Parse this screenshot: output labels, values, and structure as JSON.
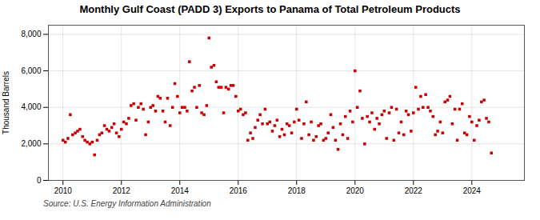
{
  "chart_data": {
    "type": "scatter",
    "title": "Monthly Gulf Coast (PADD 3) Exports to Panama of Total Petroleum Products",
    "ylabel": "Thousand Barrels",
    "source": "Source: U.S. Energy Information Administration",
    "color": "#cc0000",
    "marker": "square",
    "grid": true,
    "xlim": [
      2009.5,
      2025.8
    ],
    "ylim": [
      0,
      8500
    ],
    "xticks": [
      2010,
      2012,
      2014,
      2016,
      2018,
      2020,
      2022,
      2024
    ],
    "yticks": [
      0,
      {
        "value": 2000,
        "label": "2,000"
      },
      {
        "value": 4000,
        "label": "4,000"
      },
      {
        "value": 6000,
        "label": "6,000"
      },
      {
        "value": 8000,
        "label": "8,000"
      }
    ],
    "x": [
      2010.0,
      2010.08,
      2010.17,
      2010.25,
      2010.33,
      2010.42,
      2010.5,
      2010.58,
      2010.67,
      2010.75,
      2010.83,
      2010.92,
      2011.0,
      2011.08,
      2011.17,
      2011.25,
      2011.33,
      2011.42,
      2011.5,
      2011.58,
      2011.67,
      2011.75,
      2011.83,
      2011.92,
      2012.0,
      2012.08,
      2012.17,
      2012.25,
      2012.33,
      2012.42,
      2012.5,
      2012.58,
      2012.67,
      2012.75,
      2012.83,
      2012.92,
      2013.0,
      2013.08,
      2013.17,
      2013.25,
      2013.33,
      2013.42,
      2013.5,
      2013.58,
      2013.67,
      2013.75,
      2013.83,
      2013.92,
      2014.0,
      2014.08,
      2014.17,
      2014.25,
      2014.33,
      2014.42,
      2014.5,
      2014.58,
      2014.67,
      2014.75,
      2014.83,
      2014.92,
      2015.0,
      2015.08,
      2015.17,
      2015.25,
      2015.33,
      2015.42,
      2015.5,
      2015.58,
      2015.67,
      2015.75,
      2015.83,
      2015.92,
      2016.0,
      2016.08,
      2016.17,
      2016.25,
      2016.33,
      2016.42,
      2016.5,
      2016.58,
      2016.67,
      2016.75,
      2016.83,
      2016.92,
      2017.0,
      2017.08,
      2017.17,
      2017.25,
      2017.33,
      2017.42,
      2017.5,
      2017.58,
      2017.67,
      2017.75,
      2017.83,
      2017.92,
      2018.0,
      2018.08,
      2018.17,
      2018.25,
      2018.33,
      2018.42,
      2018.5,
      2018.58,
      2018.67,
      2018.75,
      2018.83,
      2018.92,
      2019.0,
      2019.08,
      2019.17,
      2019.25,
      2019.33,
      2019.42,
      2019.5,
      2019.58,
      2019.67,
      2019.75,
      2019.83,
      2019.92,
      2020.0,
      2020.08,
      2020.17,
      2020.25,
      2020.33,
      2020.42,
      2020.5,
      2020.58,
      2020.67,
      2020.75,
      2020.83,
      2020.92,
      2021.0,
      2021.08,
      2021.17,
      2021.25,
      2021.33,
      2021.42,
      2021.5,
      2021.58,
      2021.67,
      2021.75,
      2021.83,
      2021.92,
      2022.0,
      2022.08,
      2022.17,
      2022.25,
      2022.33,
      2022.42,
      2022.5,
      2022.58,
      2022.67,
      2022.75,
      2022.83,
      2022.92,
      2023.0,
      2023.08,
      2023.17,
      2023.25,
      2023.33,
      2023.42,
      2023.5,
      2023.58,
      2023.67,
      2023.75,
      2023.83,
      2023.92,
      2024.0,
      2024.08,
      2024.17,
      2024.25,
      2024.33,
      2024.42,
      2024.5,
      2024.58,
      2024.67
    ],
    "values": [
      2200,
      2100,
      2300,
      3600,
      2500,
      2600,
      2700,
      2800,
      2400,
      2200,
      2100,
      2000,
      2100,
      1400,
      2200,
      2500,
      2600,
      3000,
      2800,
      2700,
      2900,
      3100,
      2600,
      2400,
      2800,
      3200,
      3100,
      3400,
      4100,
      4200,
      3300,
      4000,
      4200,
      3900,
      2500,
      3200,
      4000,
      4100,
      3800,
      4600,
      4500,
      3800,
      3200,
      4500,
      3000,
      4000,
      5300,
      4600,
      3700,
      4000,
      4000,
      3800,
      6500,
      4900,
      5100,
      4000,
      5200,
      3700,
      3600,
      4100,
      7800,
      6200,
      6300,
      5400,
      5100,
      5100,
      3700,
      5100,
      5000,
      5200,
      5200,
      4600,
      3800,
      3900,
      3600,
      3700,
      2200,
      2600,
      2300,
      2900,
      3300,
      3600,
      3100,
      3900,
      3100,
      3200,
      2700,
      3000,
      3300,
      2400,
      2800,
      2500,
      3100,
      3000,
      2600,
      3200,
      3900,
      3300,
      2300,
      3100,
      4300,
      2500,
      3200,
      2200,
      2400,
      3000,
      3100,
      2200,
      2300,
      2600,
      3600,
      2900,
      2200,
      1700,
      3100,
      2500,
      3500,
      2300,
      3800,
      3200,
      6000,
      4000,
      4900,
      3400,
      2000,
      3500,
      3200,
      3700,
      2800,
      3400,
      3100,
      3600,
      3800,
      2300,
      3700,
      4000,
      2200,
      3900,
      2600,
      3200,
      2500,
      3800,
      3600,
      2700,
      3700,
      5100,
      3900,
      4600,
      4000,
      4700,
      4000,
      3800,
      3500,
      2500,
      2700,
      3200,
      2600,
      4300,
      4400,
      4600,
      3100,
      3900,
      2200,
      3900,
      4200,
      2600,
      2500,
      3500,
      3200,
      2200,
      3000,
      3300,
      4300,
      4400,
      3400,
      3200,
      1500
    ]
  }
}
